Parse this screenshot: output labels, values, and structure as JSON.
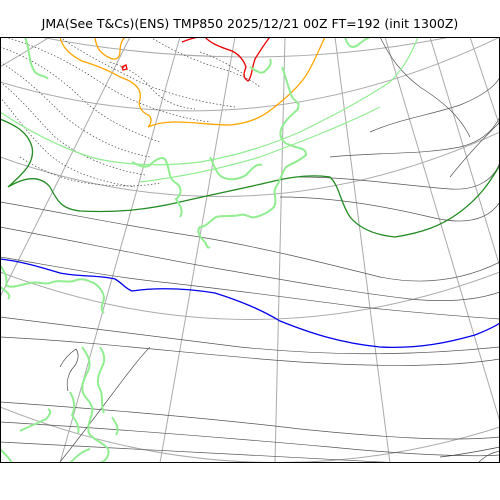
{
  "header": {
    "title": "JMA(See T&Cs)(ENS) TMP850 2025/12/21 00Z FT=192 (init 1300Z)"
  },
  "map": {
    "variable": "TMP850",
    "colors": {
      "graticule": "#aaaaaa",
      "coastline": "#90ee90",
      "isotherm_thin": "#555555",
      "isotherm_dotted": "#444444",
      "isotherm_green": "#228b22",
      "isotherm_green_light": "#90ee90",
      "isotherm_blue": "#0000ee",
      "isotherm_orange": "#ffa500",
      "isotherm_red": "#ee0000"
    }
  }
}
